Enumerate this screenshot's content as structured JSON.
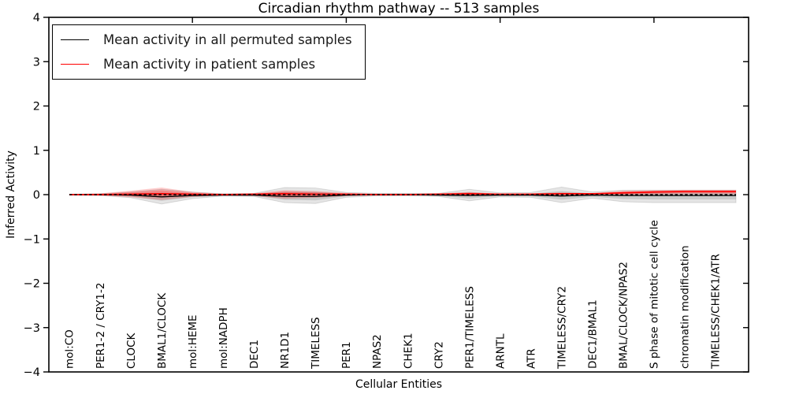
{
  "chart_data": {
    "type": "line",
    "title": "Circadian rhythm pathway -- 513 samples",
    "xlabel": "Cellular Entities",
    "ylabel": "Inferred Activity",
    "ylim": [
      -4,
      4
    ],
    "grid": false,
    "ytick_labels": [
      "4",
      "3",
      "2",
      "1",
      "0",
      "−1",
      "−2",
      "−3",
      "−4"
    ],
    "ytick_values": [
      4,
      3,
      2,
      1,
      0,
      -1,
      -2,
      -3,
      -4
    ],
    "categories": [
      "mol:CO",
      "PER1-2 / CRY1-2",
      "CLOCK",
      "BMAL1/CLOCK",
      "mol:HEME",
      "mol:NADPH",
      "DEC1",
      "NR1D1",
      "TIMELESS",
      "PER1",
      "NPAS2",
      "CHEK1",
      "CRY2",
      "PER1/TIMELESS",
      "ARNTL",
      "ATR",
      "TIMELESS/CRY2",
      "DEC1/BMAL1",
      "BMAL/CLOCK/NPAS2",
      "S phase of mitotic cell cycle",
      "chromatin modification",
      "TIMELESS/CHEK1/ATR"
    ],
    "series": [
      {
        "name": "Mean activity in all permuted samples",
        "color": "#000000",
        "style": "solid",
        "values": [
          0,
          0,
          -0.01,
          -0.05,
          -0.02,
          -0.01,
          -0.01,
          -0.04,
          -0.04,
          -0.01,
          0,
          0,
          -0.01,
          -0.02,
          -0.01,
          -0.01,
          -0.03,
          -0.01,
          -0.02,
          -0.02,
          -0.02,
          -0.02
        ]
      },
      {
        "name": "Mean activity in patient samples",
        "color": "#ff0000",
        "style": "solid",
        "values": [
          0,
          0,
          0.01,
          0.02,
          0.01,
          0,
          0.01,
          0.02,
          0.01,
          0.01,
          0,
          0,
          0.01,
          0.02,
          0.01,
          0.01,
          0.02,
          0.02,
          0.04,
          0.06,
          0.07,
          0.07
        ]
      }
    ],
    "zero_line": {
      "value": 0,
      "style": "dashed",
      "color": "#000000"
    },
    "bands": [
      {
        "series": "Mean activity in all permuted samples",
        "color": "#000000",
        "upper": [
          0.01,
          0.02,
          0.06,
          0.12,
          0.06,
          0.02,
          0.03,
          0.16,
          0.15,
          0.05,
          0.03,
          0.03,
          0.03,
          0.12,
          0.04,
          0.05,
          0.17,
          0.06,
          0.1,
          0.1,
          0.1,
          0.1
        ],
        "lower": [
          -0.01,
          -0.02,
          -0.07,
          -0.21,
          -0.09,
          -0.03,
          -0.04,
          -0.18,
          -0.2,
          -0.06,
          -0.03,
          -0.03,
          -0.04,
          -0.14,
          -0.05,
          -0.06,
          -0.18,
          -0.08,
          -0.16,
          -0.18,
          -0.18,
          -0.18
        ]
      },
      {
        "series": "Mean activity in patient samples",
        "color": "#ff0000",
        "upper": [
          0.01,
          0.03,
          0.09,
          0.16,
          0.06,
          0.02,
          0.03,
          0.1,
          0.08,
          0.04,
          0.02,
          0.02,
          0.03,
          0.06,
          0.02,
          0.03,
          0.05,
          0.03,
          0.09,
          0.1,
          0.11,
          0.11
        ],
        "lower": [
          -0.01,
          -0.02,
          -0.06,
          -0.12,
          -0.05,
          -0.02,
          -0.03,
          -0.09,
          -0.07,
          -0.03,
          -0.02,
          -0.02,
          -0.02,
          -0.03,
          -0.02,
          -0.02,
          -0.02,
          -0.01,
          -0.01,
          0,
          0.01,
          0.01
        ]
      }
    ],
    "legend": {
      "position": "upper-left",
      "entries": [
        {
          "label": "Mean activity in all permuted samples",
          "color": "#000000"
        },
        {
          "label": "Mean activity in patient samples",
          "color": "#ff0000"
        }
      ]
    }
  }
}
